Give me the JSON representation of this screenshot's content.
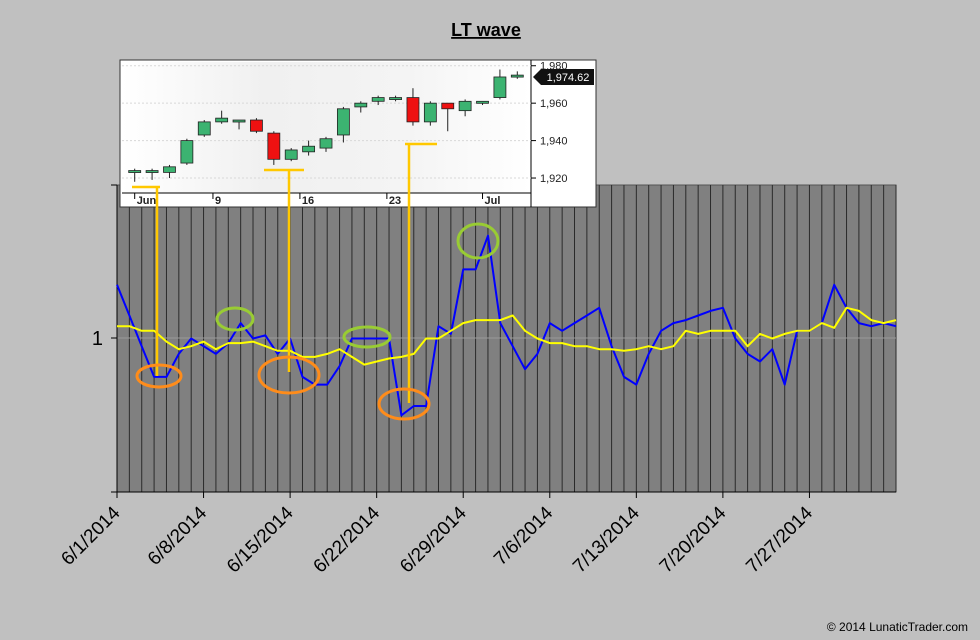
{
  "chart_data": [
    {
      "type": "line",
      "title": "LT wave",
      "xlabel": "",
      "ylabel": "",
      "x_tick_labels": [
        "6/1/2014",
        "6/8/2014",
        "6/15/2014",
        "6/22/2014",
        "6/29/2014",
        "7/6/2014",
        "7/13/2014",
        "7/20/2014",
        "7/27/2014"
      ],
      "y_tick_labels": [
        "1"
      ],
      "ylim": [
        0,
        2
      ],
      "grid": "vertical",
      "series": [
        {
          "color": "#0000ff",
          "values": [
            1.35,
            1.15,
            0.95,
            0.75,
            0.75,
            0.9,
            1.0,
            0.95,
            0.9,
            0.97,
            1.1,
            1.0,
            1.02,
            0.9,
            1.0,
            0.75,
            0.7,
            0.7,
            0.82,
            1.0,
            1.0,
            1.0,
            1.0,
            0.5,
            0.56,
            0.56,
            1.08,
            1.03,
            1.45,
            1.45,
            1.67,
            1.1,
            0.95,
            0.8,
            0.9,
            1.1,
            1.05,
            1.1,
            1.15,
            1.2,
            0.95,
            0.75,
            0.7,
            0.9,
            1.05,
            1.1,
            1.12,
            1.15,
            1.18,
            1.2,
            1.0,
            0.9,
            0.85,
            0.93,
            0.7,
            1.05,
            1.05,
            1.1,
            1.35,
            1.2,
            1.1,
            1.08,
            1.1,
            1.08
          ]
        },
        {
          "color": "#ffff00",
          "values": [
            1.08,
            1.08,
            1.05,
            1.05,
            0.98,
            0.93,
            0.95,
            0.98,
            0.93,
            0.97,
            0.97,
            0.98,
            0.95,
            0.92,
            0.92,
            0.88,
            0.88,
            0.9,
            0.93,
            0.88,
            0.83,
            0.85,
            0.87,
            0.88,
            0.9,
            1.0,
            1.0,
            1.05,
            1.1,
            1.12,
            1.12,
            1.12,
            1.15,
            1.05,
            1.0,
            0.97,
            0.97,
            0.95,
            0.95,
            0.93,
            0.93,
            0.92,
            0.93,
            0.95,
            0.93,
            0.95,
            1.05,
            1.03,
            1.05,
            1.05,
            1.05,
            0.95,
            1.03,
            1.0,
            1.03,
            1.05,
            1.05,
            1.1,
            1.07,
            1.2,
            1.18,
            1.12,
            1.1,
            1.12
          ]
        }
      ]
    },
    {
      "type": "candlestick",
      "x_tick_labels": [
        "Jun",
        "9",
        "16",
        "23",
        "Jul"
      ],
      "y_tick_labels": [
        "1,980",
        "1,960",
        "1,940",
        "1,920"
      ],
      "ylim": [
        1912,
        1982
      ],
      "last_price_label": "1,974.62",
      "candles": [
        {
          "open": 1923,
          "close": 1924,
          "high": 1925,
          "low": 1918
        },
        {
          "open": 1923,
          "close": 1924,
          "high": 1925,
          "low": 1919
        },
        {
          "open": 1923,
          "close": 1926,
          "high": 1927,
          "low": 1920
        },
        {
          "open": 1928,
          "close": 1940,
          "high": 1941,
          "low": 1927
        },
        {
          "open": 1943,
          "close": 1950,
          "high": 1951,
          "low": 1942
        },
        {
          "open": 1950,
          "close": 1952,
          "high": 1956,
          "low": 1949
        },
        {
          "open": 1951,
          "close": 1951,
          "high": 1951,
          "low": 1946
        },
        {
          "open": 1951,
          "close": 1945,
          "high": 1952,
          "low": 1944
        },
        {
          "open": 1944,
          "close": 1930,
          "high": 1945,
          "low": 1927
        },
        {
          "open": 1930,
          "close": 1935,
          "high": 1936,
          "low": 1929
        },
        {
          "open": 1934,
          "close": 1937,
          "high": 1940,
          "low": 1932
        },
        {
          "open": 1936,
          "close": 1941,
          "high": 1942,
          "low": 1934
        },
        {
          "open": 1943,
          "close": 1957,
          "high": 1958,
          "low": 1939
        },
        {
          "open": 1958,
          "close": 1960,
          "high": 1961,
          "low": 1955
        },
        {
          "open": 1961,
          "close": 1963,
          "high": 1964,
          "low": 1959
        },
        {
          "open": 1963,
          "close": 1963,
          "high": 1964,
          "low": 1961
        },
        {
          "open": 1963,
          "close": 1950,
          "high": 1968,
          "low": 1948
        },
        {
          "open": 1950,
          "close": 1960,
          "high": 1961,
          "low": 1948
        },
        {
          "open": 1960,
          "close": 1957,
          "high": 1960,
          "low": 1945
        },
        {
          "open": 1956,
          "close": 1961,
          "high": 1962,
          "low": 1953
        },
        {
          "open": 1960,
          "close": 1961,
          "high": 1961,
          "low": 1959
        },
        {
          "open": 1963,
          "close": 1974,
          "high": 1978,
          "low": 1962
        },
        {
          "open": 1974,
          "close": 1975,
          "high": 1977,
          "low": 1973
        }
      ]
    }
  ],
  "annotations": {
    "green_circle_color": "#99cc33",
    "orange_circle_color": "#ff8c1a",
    "connector_color": "#ffc800"
  },
  "copyright": "© 2014 LunaticTrader.com"
}
